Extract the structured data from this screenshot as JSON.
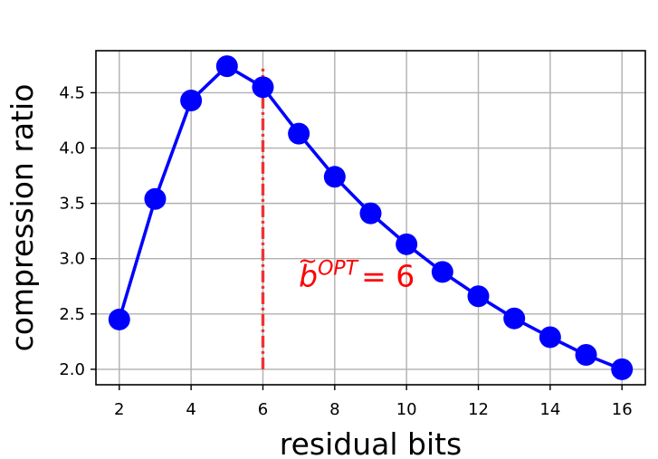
{
  "chart_data": {
    "type": "line",
    "xlabel": "residual bits",
    "ylabel": "compression ratio",
    "x": [
      2,
      3,
      4,
      5,
      6,
      7,
      8,
      9,
      10,
      11,
      12,
      13,
      14,
      15,
      16
    ],
    "series": [
      {
        "values": [
          2.45,
          3.54,
          4.43,
          4.74,
          4.55,
          4.13,
          3.74,
          3.41,
          3.13,
          2.88,
          2.66,
          2.46,
          2.29,
          2.13,
          2.0
        ],
        "color": "#0000ff",
        "marker": "circle"
      }
    ],
    "xlim": [
      1.35,
      16.65
    ],
    "ylim": [
      1.86,
      4.88
    ],
    "xticks": [
      2,
      4,
      6,
      8,
      10,
      12,
      14,
      16
    ],
    "yticks": [
      2.0,
      2.5,
      3.0,
      3.5,
      4.0,
      4.5
    ],
    "ytick_labels": [
      "2.0",
      "2.5",
      "3.0",
      "3.5",
      "4.0",
      "4.5"
    ],
    "grid": true,
    "vline": {
      "x": 6,
      "ymin": 2.0,
      "ymax": 4.74,
      "color": "#ee3333",
      "style": "dash-dot"
    },
    "annotation": {
      "base": "b",
      "accent": "~",
      "superscript": "OPT",
      "rest": "= 6",
      "x": 7.0,
      "y": 2.75,
      "color": "#ff0000"
    }
  }
}
